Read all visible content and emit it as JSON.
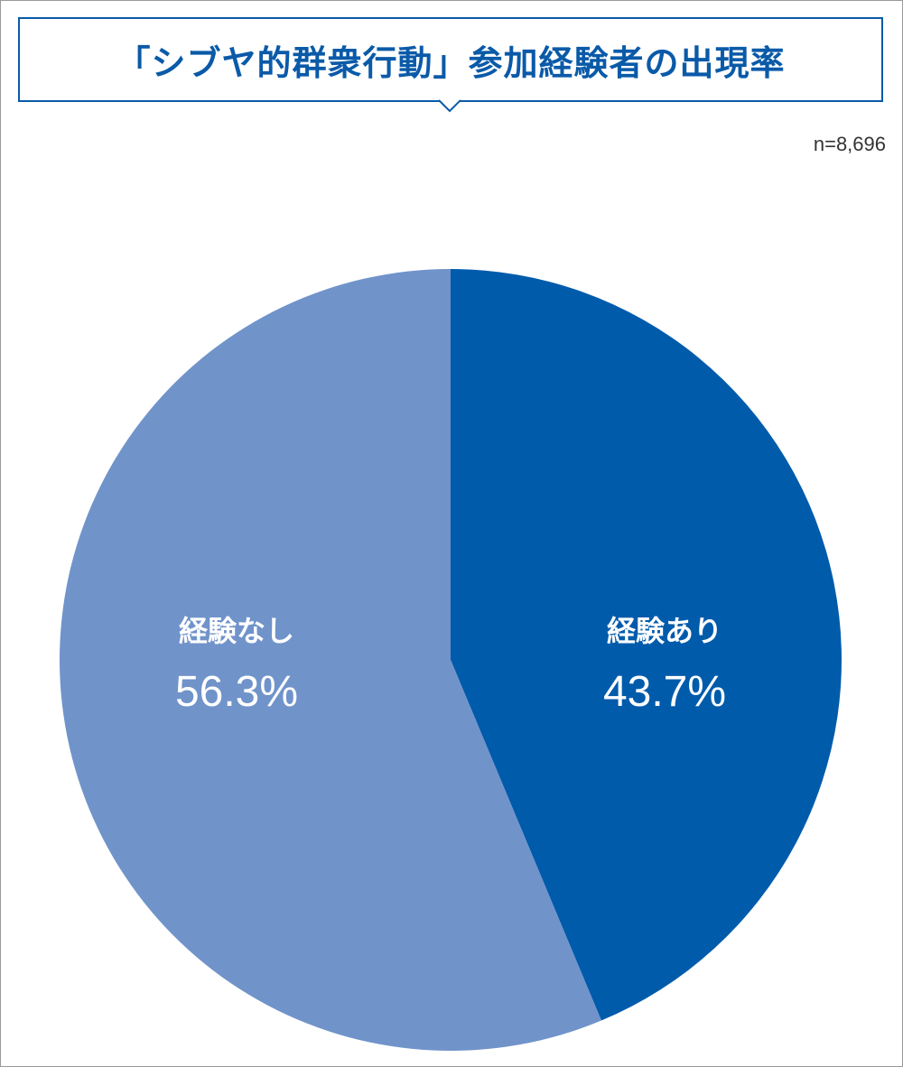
{
  "header": {
    "title": "「シブヤ的群衆行動」参加経験者の出現率",
    "sample_size": "n=8,696"
  },
  "colors": {
    "title": "#0a5aa8",
    "frame": "#9a9a9a",
    "slice_yes": "#005bab",
    "slice_no": "#7093ca"
  },
  "chart_data": {
    "type": "pie",
    "title": "「シブヤ的群衆行動」参加経験者の出現率",
    "start": "12 o'clock",
    "direction": "clockwise",
    "slices": [
      {
        "label": "経験あり",
        "value": 43.7,
        "value_label": "43.7%",
        "color": "#005bab"
      },
      {
        "label": "経験なし",
        "value": 56.3,
        "value_label": "56.3%",
        "color": "#7093ca"
      }
    ]
  }
}
